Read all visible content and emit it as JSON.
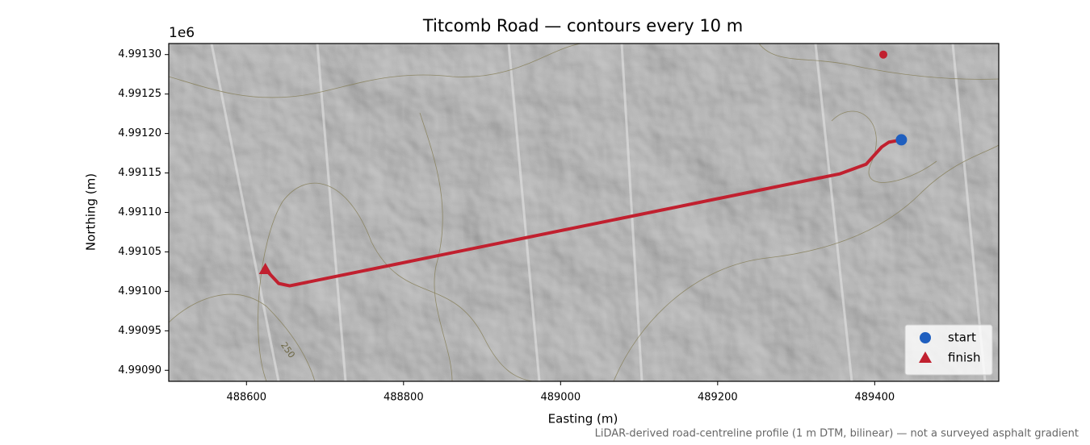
{
  "chart_data": {
    "type": "line",
    "title": "Titcomb Road — contours every 10 m",
    "x_label": "Easting (m)",
    "y_label": "Northing (m)",
    "y_offset_label": "1e6",
    "footnote": "LiDAR-derived road-centreline profile (1 m DTM, bilinear) — not a surveyed asphalt gradient",
    "contour_label": "250",
    "xlim": [
      488501,
      489558
    ],
    "ylim": [
      4990886,
      4991314
    ],
    "xticks": [
      488600,
      488800,
      489000,
      489200,
      489400
    ],
    "yticks": [
      {
        "value": 4990900,
        "label": "4.99090"
      },
      {
        "value": 4990950,
        "label": "4.99095"
      },
      {
        "value": 4991000,
        "label": "4.99100"
      },
      {
        "value": 4991050,
        "label": "4.99105"
      },
      {
        "value": 4991100,
        "label": "4.99110"
      },
      {
        "value": 4991150,
        "label": "4.99115"
      },
      {
        "value": 4991200,
        "label": "4.99120"
      },
      {
        "value": 4991250,
        "label": "4.99125"
      },
      {
        "value": 4991300,
        "label": "4.99130"
      }
    ],
    "route": {
      "color": "#c1202f",
      "x": [
        488624,
        488641,
        488655,
        489356,
        489389,
        489409,
        489418,
        489434
      ],
      "y": [
        4991028,
        4991010,
        4991007,
        4991149,
        4991161,
        4991183,
        4991189,
        4991192
      ]
    },
    "extra_point": {
      "color": "#c1202f",
      "x": [
        489411
      ],
      "y": [
        4991300
      ]
    },
    "series": [
      {
        "name": "start",
        "color": "#1f5fbf",
        "marker": "circle",
        "x": [
          489434
        ],
        "y": [
          4991192
        ]
      },
      {
        "name": "finish",
        "color": "#c1202f",
        "marker": "triangle",
        "x": [
          488624
        ],
        "y": [
          4991028
        ]
      }
    ],
    "legend": "lower right"
  }
}
